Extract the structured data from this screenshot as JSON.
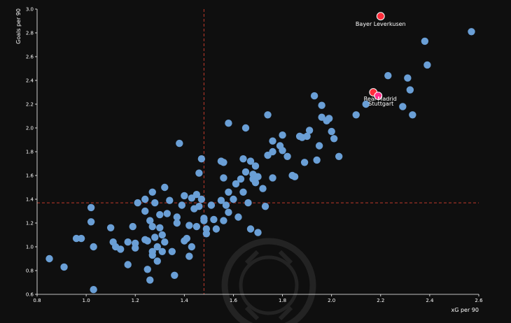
{
  "chart_data": {
    "type": "scatter",
    "xlabel": "xG per 90",
    "ylabel": "Goals per 90",
    "xlim": [
      0.8,
      2.6
    ],
    "ylim": [
      0.6,
      3.0
    ],
    "xticks": [
      "0.8",
      "1.0",
      "1.2",
      "1.4",
      "1.6",
      "1.8",
      "2.0",
      "2.2",
      "2.4",
      "2.6"
    ],
    "yticks": [
      "0.6",
      "0.8",
      "1.0",
      "1.2",
      "1.4",
      "1.6",
      "1.8",
      "2.0",
      "2.2",
      "2.4",
      "2.6",
      "2.8",
      "3.0"
    ],
    "reference_lines": {
      "x": 1.48,
      "y": 1.37
    },
    "grid": false,
    "colors": {
      "background": "#0f0f0f",
      "points": "#6a9fd6",
      "highlight": "#ff2d3b",
      "highlight_alt": "#ff2d8a",
      "reference_line": "#c0392b",
      "axis": "#ffffff"
    },
    "highlighted": [
      {
        "label": "Bayer Leverkusen",
        "x": 2.2,
        "y": 2.94,
        "color": "#ff2d3b"
      },
      {
        "label": "Real Madrid",
        "x": 2.17,
        "y": 2.3,
        "color": "#ff2d3b"
      },
      {
        "label": "Stuttgart",
        "x": 2.19,
        "y": 2.27,
        "color": "#ff2d8a"
      }
    ],
    "points": [
      [
        0.85,
        0.9
      ],
      [
        0.91,
        0.83
      ],
      [
        0.96,
        1.07
      ],
      [
        0.98,
        1.07
      ],
      [
        1.02,
        1.33
      ],
      [
        1.02,
        1.21
      ],
      [
        1.03,
        1.0
      ],
      [
        1.03,
        0.64
      ],
      [
        1.1,
        1.16
      ],
      [
        1.11,
        1.04
      ],
      [
        1.12,
        1.0
      ],
      [
        1.14,
        0.98
      ],
      [
        1.17,
        1.04
      ],
      [
        1.17,
        0.85
      ],
      [
        1.19,
        1.17
      ],
      [
        1.2,
        1.03
      ],
      [
        1.2,
        0.99
      ],
      [
        1.21,
        1.37
      ],
      [
        1.24,
        1.06
      ],
      [
        1.24,
        1.4
      ],
      [
        1.24,
        1.3
      ],
      [
        1.25,
        1.05
      ],
      [
        1.25,
        0.81
      ],
      [
        1.26,
        0.72
      ],
      [
        1.26,
        1.22
      ],
      [
        1.27,
        1.46
      ],
      [
        1.27,
        1.17
      ],
      [
        1.27,
        0.96
      ],
      [
        1.27,
        0.93
      ],
      [
        1.28,
        1.08
      ],
      [
        1.28,
        1.37
      ],
      [
        1.29,
        1.0
      ],
      [
        1.29,
        0.88
      ],
      [
        1.3,
        1.16
      ],
      [
        1.3,
        1.27
      ],
      [
        1.31,
        1.1
      ],
      [
        1.31,
        0.96
      ],
      [
        1.32,
        1.5
      ],
      [
        1.32,
        1.04
      ],
      [
        1.33,
        1.28
      ],
      [
        1.34,
        1.39
      ],
      [
        1.35,
        0.96
      ],
      [
        1.36,
        0.76
      ],
      [
        1.37,
        1.25
      ],
      [
        1.37,
        1.2
      ],
      [
        1.38,
        1.87
      ],
      [
        1.39,
        1.35
      ],
      [
        1.4,
        1.43
      ],
      [
        1.4,
        1.05
      ],
      [
        1.41,
        1.07
      ],
      [
        1.42,
        1.18
      ],
      [
        1.42,
        0.92
      ],
      [
        1.43,
        1.41
      ],
      [
        1.43,
        1.0
      ],
      [
        1.44,
        1.32
      ],
      [
        1.45,
        1.44
      ],
      [
        1.45,
        1.17
      ],
      [
        1.46,
        1.62
      ],
      [
        1.46,
        1.34
      ],
      [
        1.47,
        1.74
      ],
      [
        1.47,
        1.4
      ],
      [
        1.48,
        1.24
      ],
      [
        1.48,
        1.22
      ],
      [
        1.49,
        1.15
      ],
      [
        1.49,
        1.11
      ],
      [
        1.51,
        1.35
      ],
      [
        1.52,
        1.23
      ],
      [
        1.53,
        1.15
      ],
      [
        1.55,
        1.72
      ],
      [
        1.55,
        1.39
      ],
      [
        1.56,
        1.22
      ],
      [
        1.56,
        1.71
      ],
      [
        1.56,
        1.58
      ],
      [
        1.57,
        1.35
      ],
      [
        1.58,
        1.46
      ],
      [
        1.58,
        2.04
      ],
      [
        1.58,
        1.29
      ],
      [
        1.6,
        1.4
      ],
      [
        1.61,
        1.53
      ],
      [
        1.62,
        1.25
      ],
      [
        1.63,
        1.57
      ],
      [
        1.64,
        1.46
      ],
      [
        1.64,
        1.74
      ],
      [
        1.65,
        2.0
      ],
      [
        1.65,
        1.63
      ],
      [
        1.66,
        1.37
      ],
      [
        1.67,
        1.15
      ],
      [
        1.67,
        1.72
      ],
      [
        1.68,
        1.57
      ],
      [
        1.68,
        1.61
      ],
      [
        1.69,
        1.54
      ],
      [
        1.69,
        1.68
      ],
      [
        1.7,
        1.12
      ],
      [
        1.7,
        1.59
      ],
      [
        1.72,
        1.49
      ],
      [
        1.73,
        1.34
      ],
      [
        1.74,
        1.77
      ],
      [
        1.74,
        2.11
      ],
      [
        1.76,
        1.8
      ],
      [
        1.76,
        1.89
      ],
      [
        1.76,
        1.58
      ],
      [
        1.79,
        1.85
      ],
      [
        1.8,
        1.81
      ],
      [
        1.8,
        1.94
      ],
      [
        1.82,
        1.76
      ],
      [
        1.84,
        1.6
      ],
      [
        1.85,
        1.59
      ],
      [
        1.87,
        1.93
      ],
      [
        1.88,
        1.92
      ],
      [
        1.89,
        1.71
      ],
      [
        1.9,
        1.93
      ],
      [
        1.91,
        1.98
      ],
      [
        1.93,
        2.27
      ],
      [
        1.94,
        1.73
      ],
      [
        1.95,
        1.85
      ],
      [
        1.96,
        2.19
      ],
      [
        1.96,
        2.09
      ],
      [
        1.98,
        2.06
      ],
      [
        1.99,
        2.08
      ],
      [
        2.0,
        1.97
      ],
      [
        2.01,
        1.91
      ],
      [
        2.03,
        1.76
      ],
      [
        2.1,
        2.11
      ],
      [
        2.14,
        2.2
      ],
      [
        2.23,
        2.44
      ],
      [
        2.29,
        2.18
      ],
      [
        2.31,
        2.42
      ],
      [
        2.32,
        2.32
      ],
      [
        2.33,
        2.11
      ],
      [
        2.39,
        2.53
      ],
      [
        2.38,
        2.73
      ],
      [
        2.57,
        2.81
      ]
    ]
  }
}
